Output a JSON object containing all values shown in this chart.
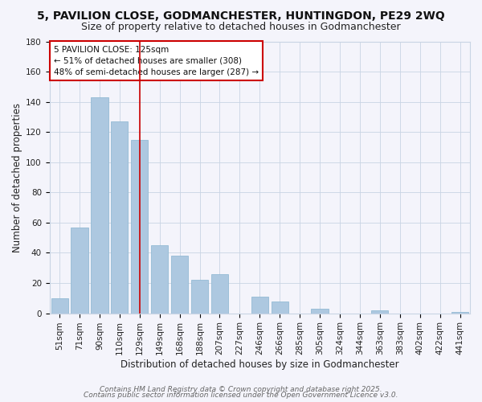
{
  "title": "5, PAVILION CLOSE, GODMANCHESTER, HUNTINGDON, PE29 2WQ",
  "subtitle": "Size of property relative to detached houses in Godmanchester",
  "xlabel": "Distribution of detached houses by size in Godmanchester",
  "ylabel": "Number of detached properties",
  "categories": [
    "51sqm",
    "71sqm",
    "90sqm",
    "110sqm",
    "129sqm",
    "149sqm",
    "168sqm",
    "188sqm",
    "207sqm",
    "227sqm",
    "246sqm",
    "266sqm",
    "285sqm",
    "305sqm",
    "324sqm",
    "344sqm",
    "363sqm",
    "383sqm",
    "402sqm",
    "422sqm",
    "441sqm"
  ],
  "values": [
    10,
    57,
    143,
    127,
    115,
    45,
    38,
    22,
    26,
    0,
    11,
    8,
    0,
    3,
    0,
    0,
    2,
    0,
    0,
    0,
    1
  ],
  "bar_color": "#adc8e0",
  "bar_edge_color": "#88b4d0",
  "highlight_index": 4,
  "highlight_color": "#cc0000",
  "ylim": [
    0,
    180
  ],
  "yticks": [
    0,
    20,
    40,
    60,
    80,
    100,
    120,
    140,
    160,
    180
  ],
  "annotation_box_text": "5 PAVILION CLOSE: 125sqm\n← 51% of detached houses are smaller (308)\n48% of semi-detached houses are larger (287) →",
  "footer1": "Contains HM Land Registry data © Crown copyright and database right 2025.",
  "footer2": "Contains public sector information licensed under the Open Government Licence v3.0.",
  "background_color": "#f4f4fb",
  "grid_color": "#c8d4e4",
  "title_fontsize": 10,
  "subtitle_fontsize": 9,
  "axis_label_fontsize": 8.5,
  "tick_fontsize": 7.5,
  "annotation_fontsize": 7.5,
  "footer_fontsize": 6.5
}
